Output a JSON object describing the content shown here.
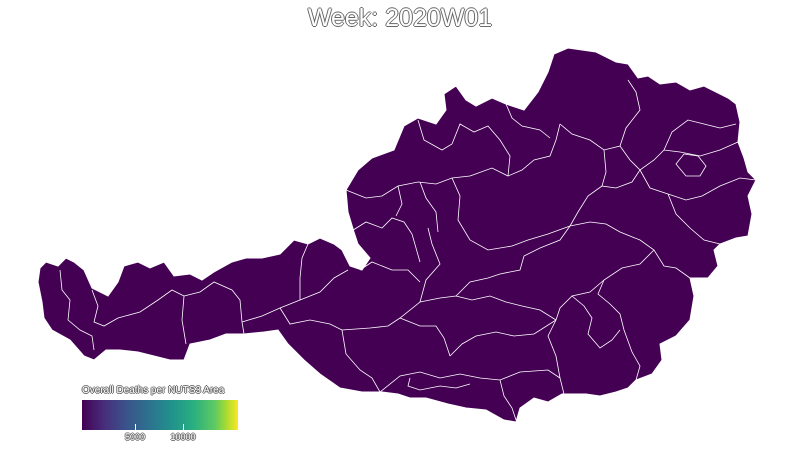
{
  "title": "Week: 2020W01",
  "legend": {
    "title": "Overall Deaths per NUTS3 Area",
    "ticks": [
      "5000",
      "10000"
    ],
    "tick_values": [
      5000,
      10000
    ],
    "range": [
      0,
      14000
    ],
    "palette": "viridis"
  },
  "map": {
    "country": "Austria",
    "regions": "NUTS3",
    "fill_color": "#440154",
    "border_color": "#ffffff"
  }
}
